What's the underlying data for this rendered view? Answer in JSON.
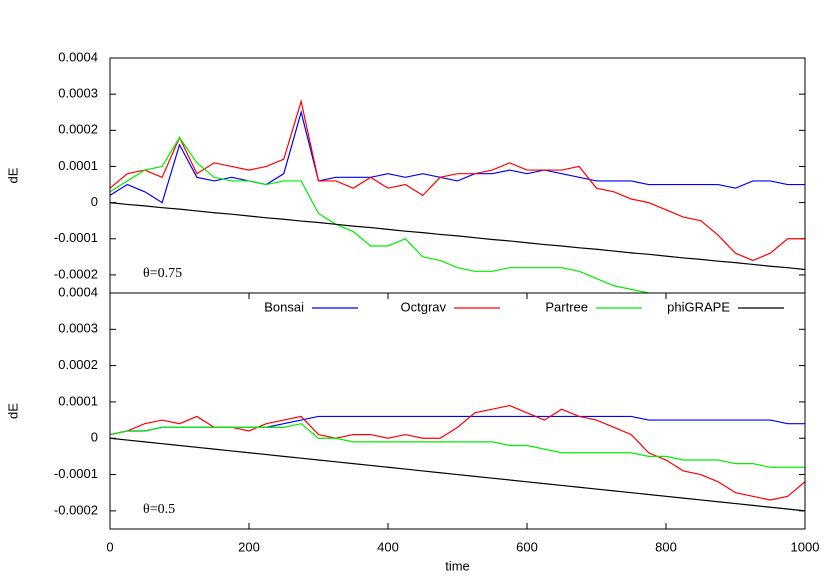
{
  "chart_data": [
    {
      "type": "line",
      "ylabel": "dE",
      "annotation": "θ=0.75",
      "x": [
        0,
        25,
        50,
        75,
        100,
        125,
        150,
        175,
        200,
        225,
        250,
        275,
        300,
        325,
        350,
        375,
        400,
        425,
        450,
        475,
        500,
        525,
        550,
        575,
        600,
        625,
        650,
        675,
        700,
        725,
        750,
        775,
        800,
        825,
        850,
        875,
        900,
        925,
        950,
        975,
        1000
      ],
      "ylim": [
        -0.00025,
        0.0004
      ],
      "yticks": [
        -0.0002,
        -0.0001,
        0,
        0.0001,
        0.0002,
        0.0003,
        0.0004
      ],
      "series": [
        {
          "color": "#0000ff",
          "values": [
            2e-05,
            5e-05,
            3e-05,
            0,
            0.00016,
            7e-05,
            6e-05,
            7e-05,
            6e-05,
            5e-05,
            8e-05,
            0.00025,
            6e-05,
            7e-05,
            7e-05,
            7e-05,
            8e-05,
            7e-05,
            8e-05,
            7e-05,
            6e-05,
            8e-05,
            8e-05,
            9e-05,
            8e-05,
            9e-05,
            8e-05,
            7e-05,
            6e-05,
            6e-05,
            6e-05,
            5e-05,
            5e-05,
            5e-05,
            5e-05,
            5e-05,
            4e-05,
            6e-05,
            6e-05,
            5e-05,
            5e-05
          ]
        },
        {
          "color": "#ff0000",
          "values": [
            4e-05,
            8e-05,
            9e-05,
            7e-05,
            0.00018,
            8e-05,
            0.00011,
            0.0001,
            9e-05,
            0.0001,
            0.00012,
            0.00028,
            6e-05,
            6e-05,
            4e-05,
            7e-05,
            4e-05,
            5e-05,
            2e-05,
            7e-05,
            8e-05,
            8e-05,
            9e-05,
            0.00011,
            9e-05,
            9e-05,
            9e-05,
            0.0001,
            4e-05,
            3e-05,
            1e-05,
            0,
            -2e-05,
            -4e-05,
            -5e-05,
            -9e-05,
            -0.00014,
            -0.00016,
            -0.00014,
            -0.0001,
            -0.0001
          ]
        },
        {
          "color": "#00ee00",
          "values": [
            3e-05,
            6e-05,
            9e-05,
            0.0001,
            0.00018,
            0.00011,
            7e-05,
            6e-05,
            6e-05,
            5e-05,
            6e-05,
            6e-05,
            -3e-05,
            -6e-05,
            -8e-05,
            -0.00012,
            -0.00012,
            -0.0001,
            -0.00015,
            -0.00016,
            -0.00018,
            -0.00019,
            -0.00019,
            -0.00018,
            -0.00018,
            -0.00018,
            -0.00018,
            -0.00019,
            -0.00021,
            -0.00023,
            -0.00024,
            -0.00025,
            null,
            null,
            null,
            null,
            null,
            null,
            null,
            null,
            null
          ]
        },
        {
          "color": "#000000",
          "values": [
            0,
            -5e-06,
            -9e-06,
            -1.4e-05,
            -1.8e-05,
            -2.3e-05,
            -2.8e-05,
            -3.2e-05,
            -3.7e-05,
            -4.2e-05,
            -4.6e-05,
            -5.1e-05,
            -5.5e-05,
            -6e-05,
            -6.5e-05,
            -6.9e-05,
            -7.4e-05,
            -7.9e-05,
            -8.3e-05,
            -8.8e-05,
            -9.2e-05,
            -9.7e-05,
            -0.000102,
            -0.000106,
            -0.000111,
            -0.000116,
            -0.00012,
            -0.000125,
            -0.000129,
            -0.000134,
            -0.000139,
            -0.000143,
            -0.000148,
            -0.000153,
            -0.000157,
            -0.000162,
            -0.000166,
            -0.000171,
            -0.000176,
            -0.00018,
            -0.000185
          ]
        }
      ]
    },
    {
      "type": "line",
      "ylabel": "dE",
      "xlabel": "time",
      "annotation": "θ=0.5",
      "legend": "top",
      "x": [
        0,
        25,
        50,
        75,
        100,
        125,
        150,
        175,
        200,
        225,
        250,
        275,
        300,
        325,
        350,
        375,
        400,
        425,
        450,
        475,
        500,
        525,
        550,
        575,
        600,
        625,
        650,
        675,
        700,
        725,
        750,
        775,
        800,
        825,
        850,
        875,
        900,
        925,
        950,
        975,
        1000
      ],
      "xlim": [
        0,
        1000
      ],
      "xticks": [
        0,
        200,
        400,
        600,
        800,
        1000
      ],
      "ylim": [
        -0.00025,
        0.0004
      ],
      "yticks": [
        -0.0002,
        -0.0001,
        0,
        0.0001,
        0.0002,
        0.0003,
        0.0004
      ],
      "series": [
        {
          "name": "Bonsai",
          "color": "#0000ff",
          "values": [
            1e-05,
            2e-05,
            2e-05,
            3e-05,
            3e-05,
            3e-05,
            3e-05,
            3e-05,
            3e-05,
            3e-05,
            4e-05,
            5e-05,
            6e-05,
            6e-05,
            6e-05,
            6e-05,
            6e-05,
            6e-05,
            6e-05,
            6e-05,
            6e-05,
            6e-05,
            6e-05,
            6e-05,
            6e-05,
            6e-05,
            6e-05,
            6e-05,
            6e-05,
            6e-05,
            6e-05,
            5e-05,
            5e-05,
            5e-05,
            5e-05,
            5e-05,
            5e-05,
            5e-05,
            5e-05,
            4e-05,
            4e-05
          ]
        },
        {
          "name": "Octgrav",
          "color": "#ff0000",
          "values": [
            1e-05,
            2e-05,
            4e-05,
            5e-05,
            4e-05,
            6e-05,
            3e-05,
            3e-05,
            2e-05,
            4e-05,
            5e-05,
            6e-05,
            1e-05,
            0,
            1e-05,
            1e-05,
            0,
            1e-05,
            0,
            0,
            3e-05,
            7e-05,
            8e-05,
            9e-05,
            7e-05,
            5e-05,
            8e-05,
            6e-05,
            5e-05,
            3e-05,
            1e-05,
            -4e-05,
            -6e-05,
            -9e-05,
            -0.0001,
            -0.00012,
            -0.00015,
            -0.00016,
            -0.00017,
            -0.00016,
            -0.00012
          ]
        },
        {
          "name": "Partree",
          "color": "#00ee00",
          "values": [
            1e-05,
            2e-05,
            2e-05,
            3e-05,
            3e-05,
            3e-05,
            3e-05,
            3e-05,
            3e-05,
            3e-05,
            3e-05,
            4e-05,
            0,
            0,
            -1e-05,
            -1e-05,
            -1e-05,
            -1e-05,
            -1e-05,
            -1e-05,
            -1e-05,
            -1e-05,
            -1e-05,
            -2e-05,
            -2e-05,
            -3e-05,
            -4e-05,
            -4e-05,
            -4e-05,
            -4e-05,
            -4e-05,
            -5e-05,
            -5e-05,
            -6e-05,
            -6e-05,
            -6e-05,
            -7e-05,
            -7e-05,
            -8e-05,
            -8e-05,
            -8e-05
          ]
        },
        {
          "name": "phiGRAPE",
          "color": "#000000",
          "values": [
            0,
            -5e-06,
            -1e-05,
            -1.5e-05,
            -2e-05,
            -2.5e-05,
            -3e-05,
            -3.5e-05,
            -4e-05,
            -4.5e-05,
            -5e-05,
            -5.5e-05,
            -6e-05,
            -6.5e-05,
            -7e-05,
            -7.5e-05,
            -8e-05,
            -8.5e-05,
            -9e-05,
            -9.5e-05,
            -0.0001,
            -0.000105,
            -0.00011,
            -0.000115,
            -0.00012,
            -0.000125,
            -0.00013,
            -0.000135,
            -0.00014,
            -0.000145,
            -0.00015,
            -0.000155,
            -0.00016,
            -0.000165,
            -0.00017,
            -0.000175,
            -0.00018,
            -0.000185,
            -0.00019,
            -0.000195,
            -0.0002
          ]
        }
      ]
    }
  ]
}
